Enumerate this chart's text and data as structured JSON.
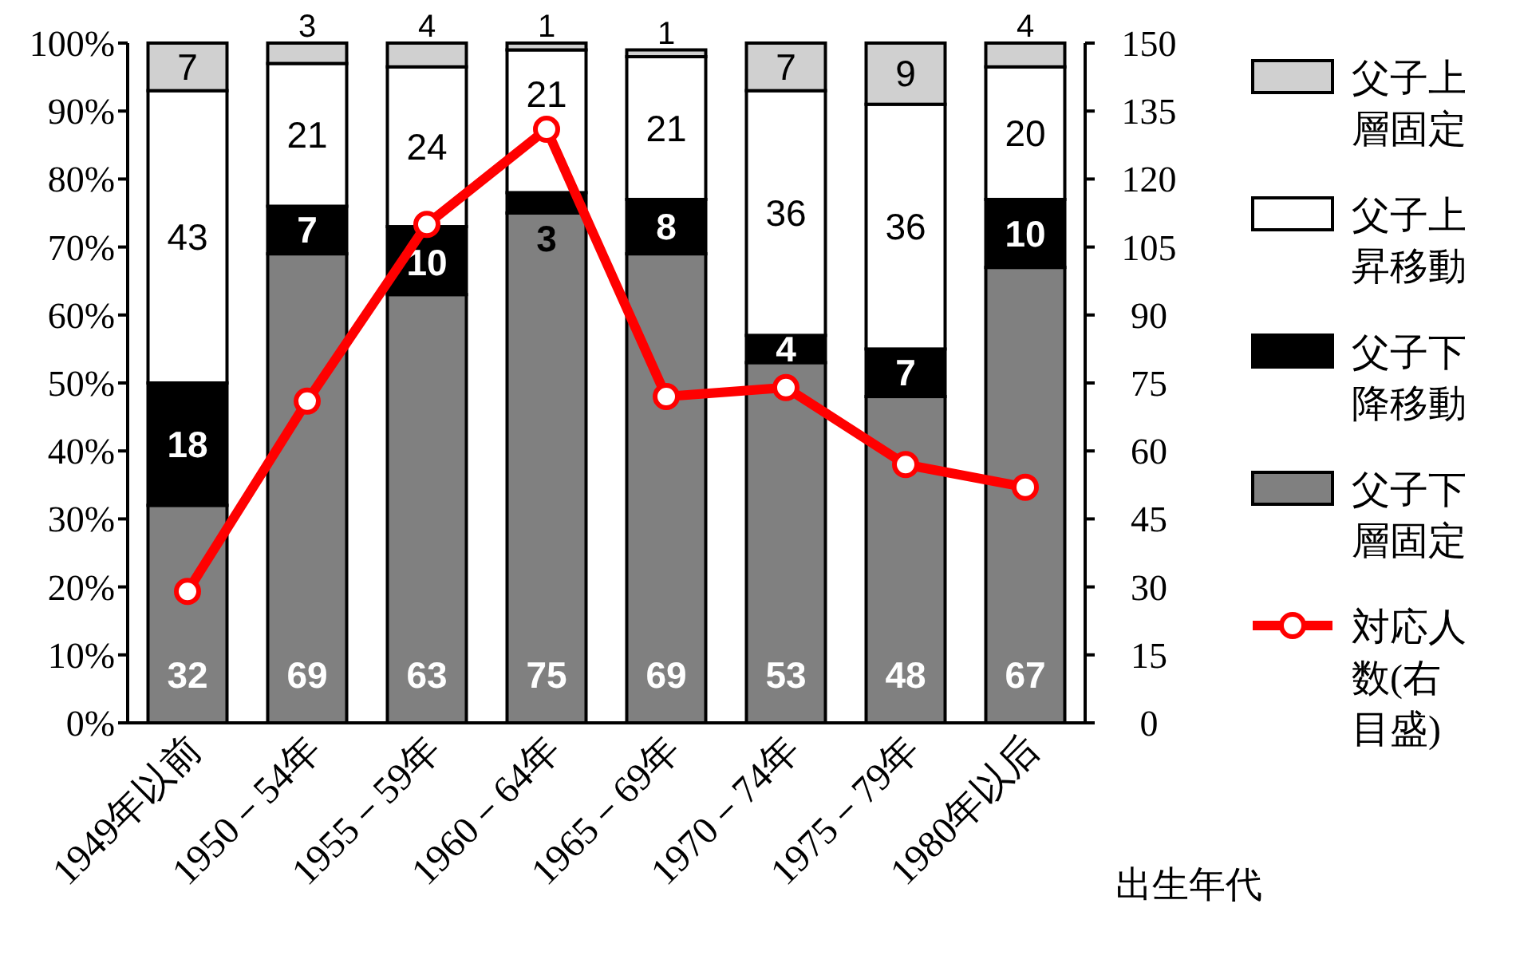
{
  "chart_data": {
    "type": "bar",
    "stacked": true,
    "xlabel": "出生年代",
    "categories": [
      "1949年以前",
      "1950－54年",
      "1955－59年",
      "1960－64年",
      "1965－69年",
      "1970－74年",
      "1975－79年",
      "1980年以后"
    ],
    "series": [
      {
        "name": "父子下層固定",
        "color": "#808080",
        "values": [
          32,
          69,
          63,
          75,
          69,
          53,
          48,
          67
        ],
        "value_labels": [
          "32",
          "69",
          "63",
          "75",
          "69",
          "53",
          "48",
          "67"
        ]
      },
      {
        "name": "父子下降移動",
        "color": "#000000",
        "values": [
          18,
          7,
          10,
          3,
          8,
          4,
          7,
          10
        ],
        "value_labels": [
          "18",
          "7",
          "10",
          "3",
          "8",
          "4",
          "7",
          "10"
        ]
      },
      {
        "name": "父子上昇移動",
        "color": "#ffffff",
        "values": [
          43,
          21,
          23.5,
          21,
          21,
          36,
          36,
          19.5
        ],
        "value_labels": [
          "43",
          "21",
          "24",
          "21",
          "21",
          "36",
          "36",
          "20"
        ]
      },
      {
        "name": "父子上層固定",
        "color": "#d0d0d0",
        "values": [
          7,
          3,
          3.5,
          1,
          1,
          7,
          9,
          3.5
        ],
        "value_labels": [
          "7",
          "3",
          "4",
          "1",
          "1",
          "7",
          "9",
          "4"
        ]
      },
      {
        "name": "対応人数(右目盛)",
        "type": "line",
        "axis": "y2",
        "color": "#ff0000",
        "marker": "circle",
        "values": [
          29,
          71,
          110,
          131,
          72,
          74,
          57,
          52
        ]
      }
    ],
    "ylim": [
      0,
      100
    ],
    "yticks": [
      {
        "value": 0,
        "label": "0%"
      },
      {
        "value": 10,
        "label": "10%"
      },
      {
        "value": 20,
        "label": "20%"
      },
      {
        "value": 30,
        "label": "30%"
      },
      {
        "value": 40,
        "label": "40%"
      },
      {
        "value": 50,
        "label": "50%"
      },
      {
        "value": 60,
        "label": "60%"
      },
      {
        "value": 70,
        "label": "70%"
      },
      {
        "value": 80,
        "label": "80%"
      },
      {
        "value": 90,
        "label": "90%"
      },
      {
        "value": 100,
        "label": "100%"
      }
    ],
    "y2lim": [
      0,
      150
    ],
    "y2ticks": [
      0,
      15,
      30,
      45,
      60,
      75,
      90,
      105,
      120,
      135,
      150
    ],
    "legend": "right",
    "grid": false
  }
}
